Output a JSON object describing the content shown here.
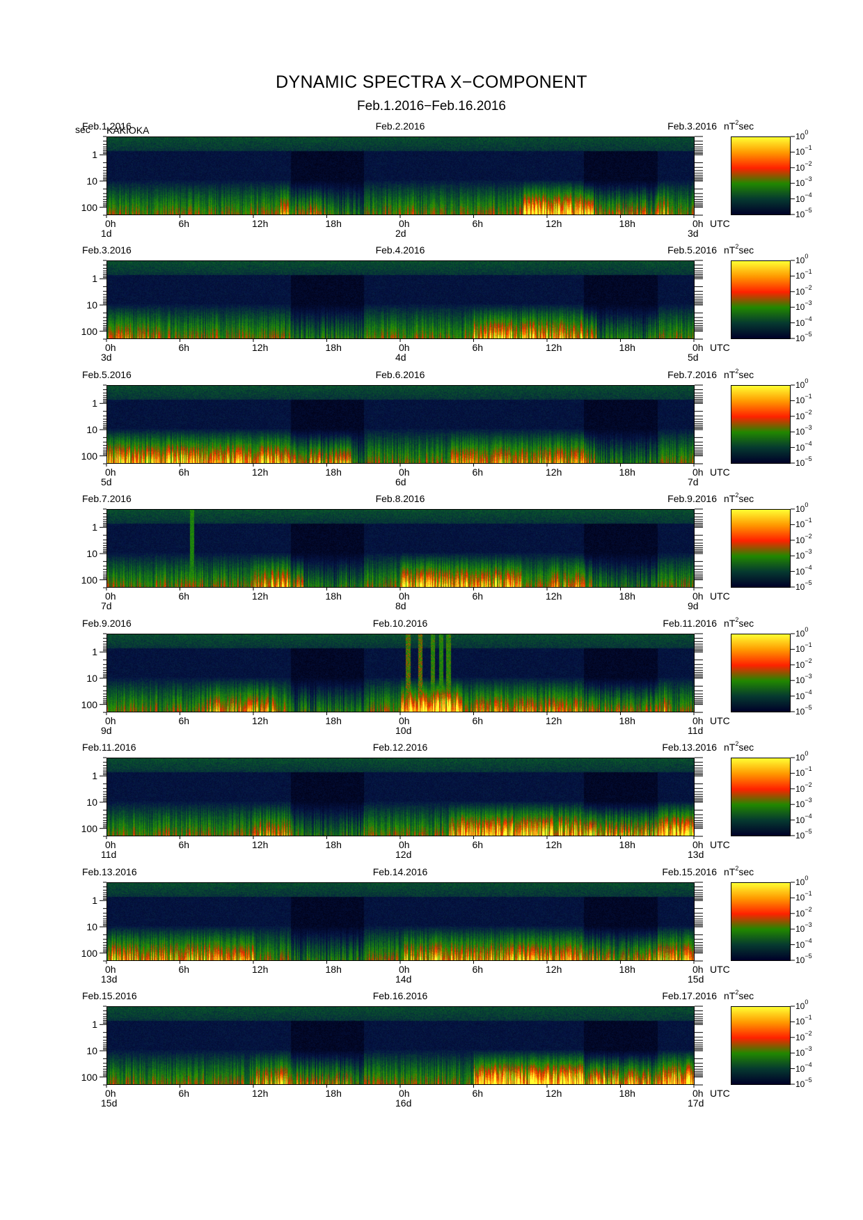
{
  "title": "DYNAMIC SPECTRA X−COMPONENT",
  "subtitle": "Feb.1.2016−Feb.16.2016",
  "y_unit": "sec",
  "station": "KAKIOKA",
  "y_ticks": [
    "1",
    "10",
    "100"
  ],
  "x_ticks": [
    "0h",
    "6h",
    "12h",
    "18h",
    "0h",
    "6h",
    "12h",
    "18h",
    "0h"
  ],
  "utc_label": "UTC",
  "colorbar": {
    "unit_base": "nT",
    "unit_exp": "2",
    "unit_tail": "sec",
    "labels": [
      {
        "base": "10",
        "exp": "0"
      },
      {
        "base": "10",
        "exp": "−1"
      },
      {
        "base": "10",
        "exp": "−2"
      },
      {
        "base": "10",
        "exp": "−3"
      },
      {
        "base": "10",
        "exp": "−4"
      },
      {
        "base": "10",
        "exp": "−5"
      }
    ],
    "colors": [
      "#ffff33",
      "#ff9900",
      "#ff2200",
      "#228800",
      "#063a30",
      "#000028"
    ]
  },
  "panels": [
    {
      "date_left": "Feb.1.2016",
      "date_mid": "Feb.2.2016",
      "date_right": "Feb.3.2016",
      "day_left": "1d",
      "day_mid": "2d",
      "day_right": "3d"
    },
    {
      "date_left": "Feb.3.2016",
      "date_mid": "Feb.4.2016",
      "date_right": "Feb.5.2016",
      "day_left": "3d",
      "day_mid": "4d",
      "day_right": "5d"
    },
    {
      "date_left": "Feb.5.2016",
      "date_mid": "Feb.6.2016",
      "date_right": "Feb.7.2016",
      "day_left": "5d",
      "day_mid": "6d",
      "day_right": "7d"
    },
    {
      "date_left": "Feb.7.2016",
      "date_mid": "Feb.8.2016",
      "date_right": "Feb.9.2016",
      "day_left": "7d",
      "day_mid": "8d",
      "day_right": "9d"
    },
    {
      "date_left": "Feb.9.2016",
      "date_mid": "Feb.10.2016",
      "date_right": "Feb.11.2016",
      "day_left": "9d",
      "day_mid": "10d",
      "day_right": "11d"
    },
    {
      "date_left": "Feb.11.2016",
      "date_mid": "Feb.12.2016",
      "date_right": "Feb.13.2016",
      "day_left": "11d",
      "day_mid": "12d",
      "day_right": "13d"
    },
    {
      "date_left": "Feb.13.2016",
      "date_mid": "Feb.14.2016",
      "date_right": "Feb.15.2016",
      "day_left": "13d",
      "day_mid": "14d",
      "day_right": "15d"
    },
    {
      "date_left": "Feb.15.2016",
      "date_mid": "Feb.16.2016",
      "date_right": "Feb.17.2016",
      "day_left": "15d",
      "day_mid": "16d",
      "day_right": "17d"
    }
  ],
  "chart_data": {
    "type": "heatmap",
    "title": "DYNAMIC SPECTRA X−COMPONENT",
    "subtitle": "Feb.1.2016−Feb.16.2016",
    "ylabel": "sec",
    "y_scale": "log",
    "y_range_sec": [
      0.2,
      200
    ],
    "x_range_hours_per_panel": [
      0,
      48
    ],
    "colorbar_scale": "log",
    "colorbar_range": [
      1e-05,
      1
    ],
    "panel_count": 8,
    "grid": false,
    "legend": "colorbar right of each panel",
    "activity_intensity_estimates": [
      {
        "panel": 1,
        "hour": [
          38,
          42
        ],
        "level": "high"
      },
      {
        "panel": 2,
        "hour": [
          36,
          40
        ],
        "level": "moderate"
      },
      {
        "panel": 3,
        "hour": [
          0,
          20
        ],
        "level": "high"
      },
      {
        "panel": 4,
        "hour": [
          26,
          30
        ],
        "level": "high"
      },
      {
        "panel": 5,
        "hour": [
          25,
          29
        ],
        "level": "very high, broadband bursts"
      },
      {
        "panel": 6,
        "hour": [
          28,
          48
        ],
        "level": "high"
      },
      {
        "panel": 7,
        "hour": [
          0,
          48
        ],
        "level": "moderate"
      },
      {
        "panel": 8,
        "hour": [
          30,
          48
        ],
        "level": "very high"
      }
    ]
  }
}
